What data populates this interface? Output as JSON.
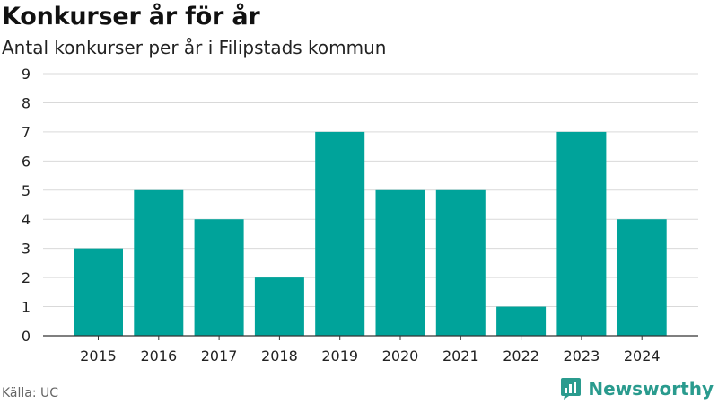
{
  "title": "Konkurser år för år",
  "subtitle": "Antal konkurser per år i Filipstads kommun",
  "source": "Källa: UC",
  "brand": "Newsworthy",
  "colors": {
    "bar": "#00a39a",
    "grid": "#d9d9d9",
    "axis": "#333333",
    "brand": "#2a9b8e"
  },
  "chart_data": {
    "type": "bar",
    "categories": [
      "2015",
      "2016",
      "2017",
      "2018",
      "2019",
      "2020",
      "2021",
      "2022",
      "2023",
      "2024"
    ],
    "values": [
      3,
      5,
      4,
      2,
      7,
      5,
      5,
      1,
      7,
      4
    ],
    "title": "Konkurser år för år",
    "subtitle": "Antal konkurser per år i Filipstads kommun",
    "ylim": [
      0,
      9
    ],
    "yticks": [
      0,
      1,
      2,
      3,
      4,
      5,
      6,
      7,
      8,
      9
    ],
    "grid": true
  }
}
